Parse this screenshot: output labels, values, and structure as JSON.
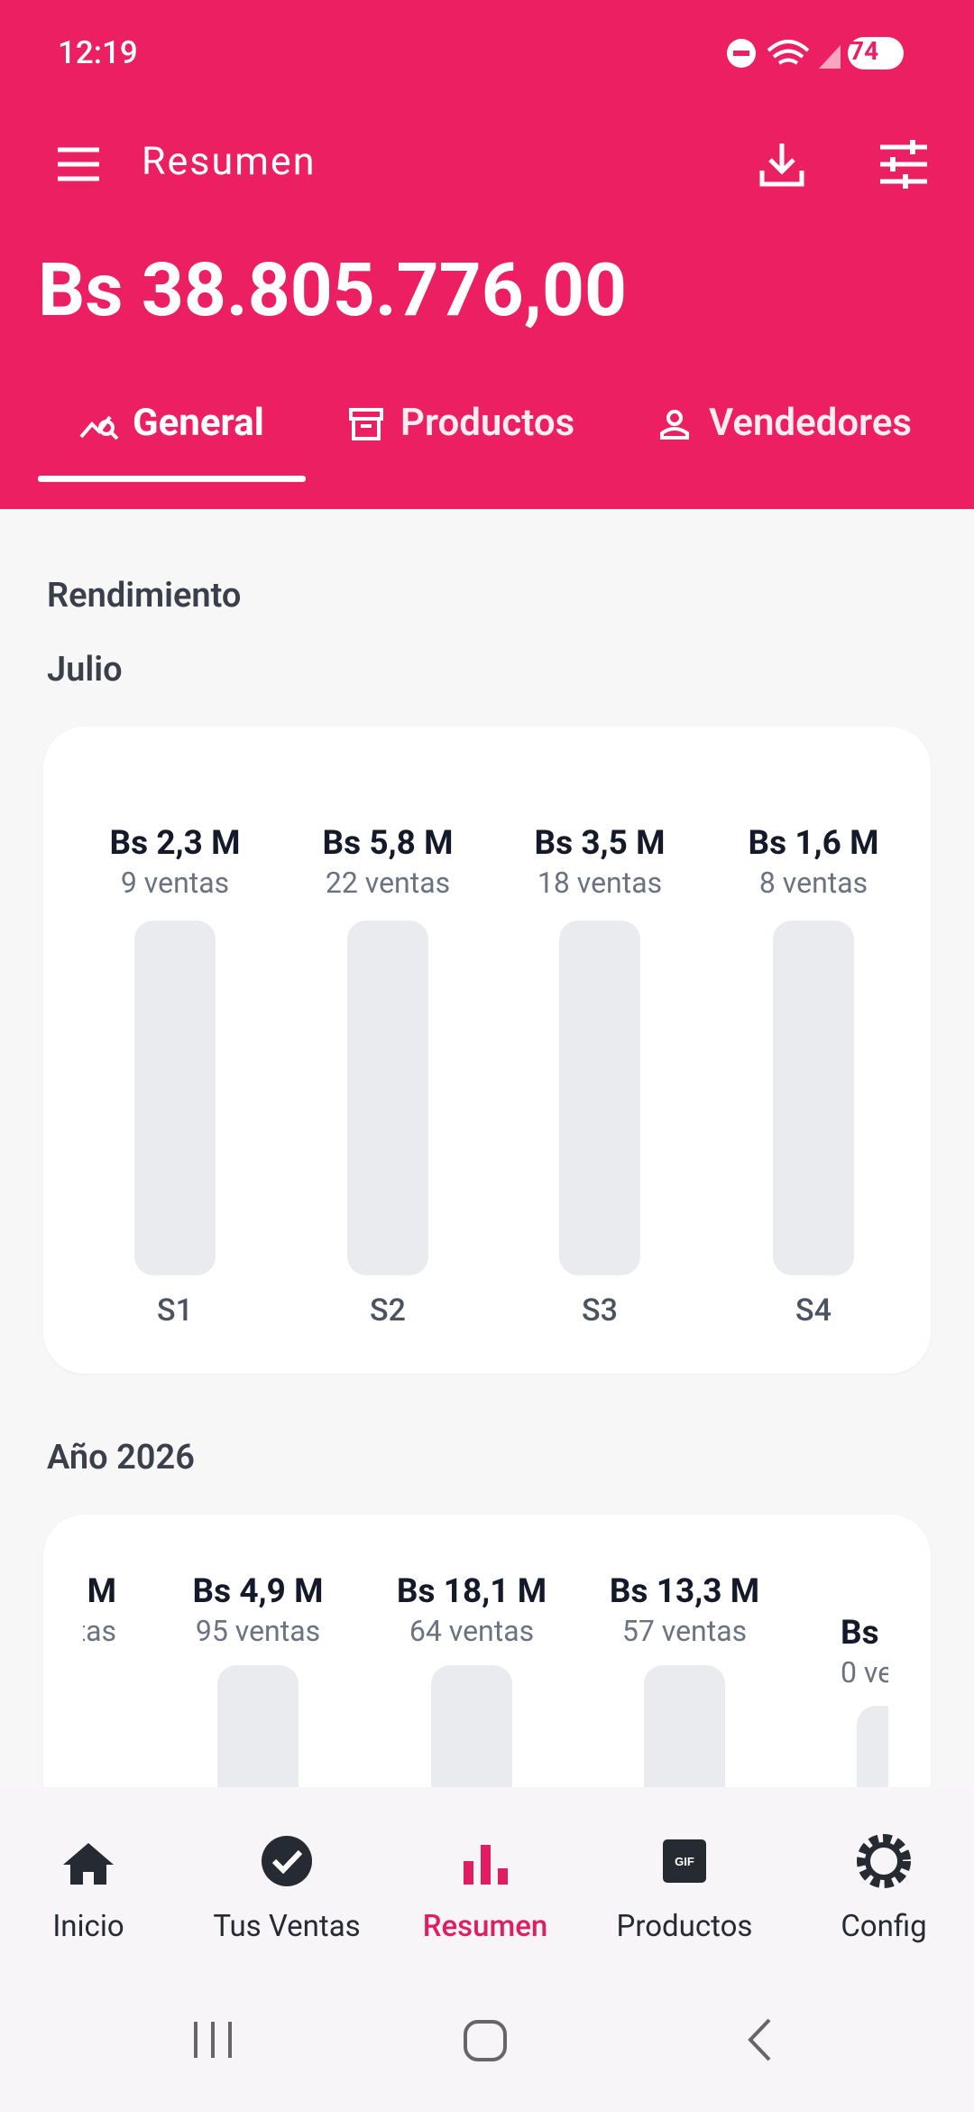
{
  "status_bar": {
    "time": "12:19",
    "battery": "74"
  },
  "header": {
    "title": "Resumen",
    "total": "Bs 38.805.776,00"
  },
  "tabs": [
    "General",
    "Productos",
    "Vendedores"
  ],
  "section_title": "Rendimiento",
  "month_chart": {
    "title": "Julio",
    "bars": [
      {
        "label": "S1",
        "value": 2.3,
        "value_label": "Bs 2,3 M",
        "sales": "9 ventas",
        "color": "#19BCDA"
      },
      {
        "label": "S2",
        "value": 5.8,
        "value_label": "Bs 5,8 M",
        "sales": "22 ventas",
        "color": "#7D43EE"
      },
      {
        "label": "S3",
        "value": 3.5,
        "value_label": "Bs 3,5 M",
        "sales": "18 ventas",
        "color": "#15BB84"
      },
      {
        "label": "S4",
        "value": 1.6,
        "value_label": "Bs 1,6 M",
        "sales": "8 ventas",
        "color": "#F39E12"
      }
    ]
  },
  "year_chart": {
    "title": "Año 2026",
    "bars": [
      {
        "value_label": "M",
        "sales": "tas"
      },
      {
        "value": 4.9,
        "value_label": "Bs 4,9 M",
        "sales": "95 ventas",
        "color": "#9AA3AF"
      },
      {
        "value": 18.1,
        "value_label": "Bs 18,1 M",
        "sales": "64 ventas",
        "color": "#3E83F6"
      },
      {
        "value": 13.3,
        "value_label": "Bs 13,3 M",
        "sales": "57 ventas",
        "color": "#8A5CF4"
      },
      {
        "value_label": "Bs",
        "sales": "0 ve"
      }
    ]
  },
  "bottom_nav": [
    {
      "label": "Inicio"
    },
    {
      "label": "Tus Ventas"
    },
    {
      "label": "Resumen",
      "active": true
    },
    {
      "label": "Productos"
    },
    {
      "label": "Config"
    }
  ]
}
